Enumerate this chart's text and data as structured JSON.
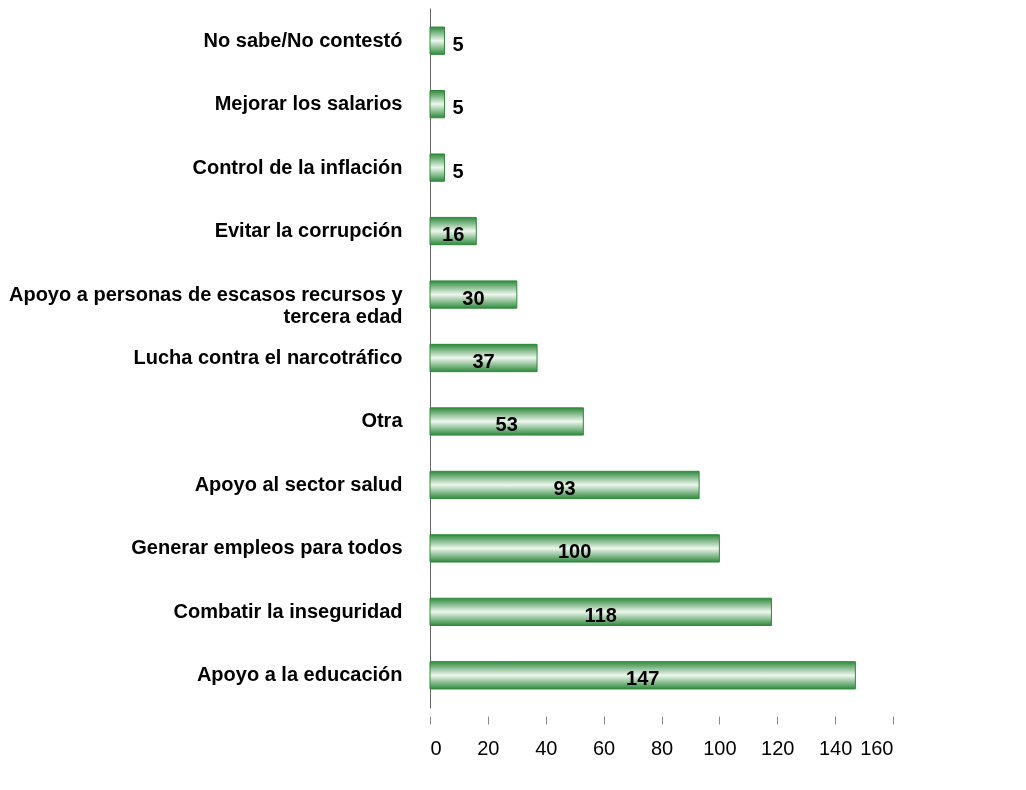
{
  "chart_data": {
    "type": "bar",
    "orientation": "horizontal",
    "categories": [
      "No sabe/No contestó",
      "Mejorar los salarios",
      "Control de la inflación",
      "Evitar la corrupción",
      "Apoyo a personas de escasos recursos y tercera edad",
      "Lucha contra el narcotráfico",
      "Otra",
      "Apoyo al sector salud",
      "Generar empleos para todos",
      "Combatir la inseguridad",
      "Apoyo a la educación"
    ],
    "values": [
      5,
      5,
      5,
      16,
      30,
      37,
      53,
      93,
      100,
      118,
      147
    ],
    "color": "#2f8a3c",
    "xlim": [
      0,
      160
    ],
    "xticks": [
      0,
      20,
      40,
      60,
      80,
      100,
      120,
      140,
      160
    ],
    "data_labels": true,
    "grid": false
  }
}
